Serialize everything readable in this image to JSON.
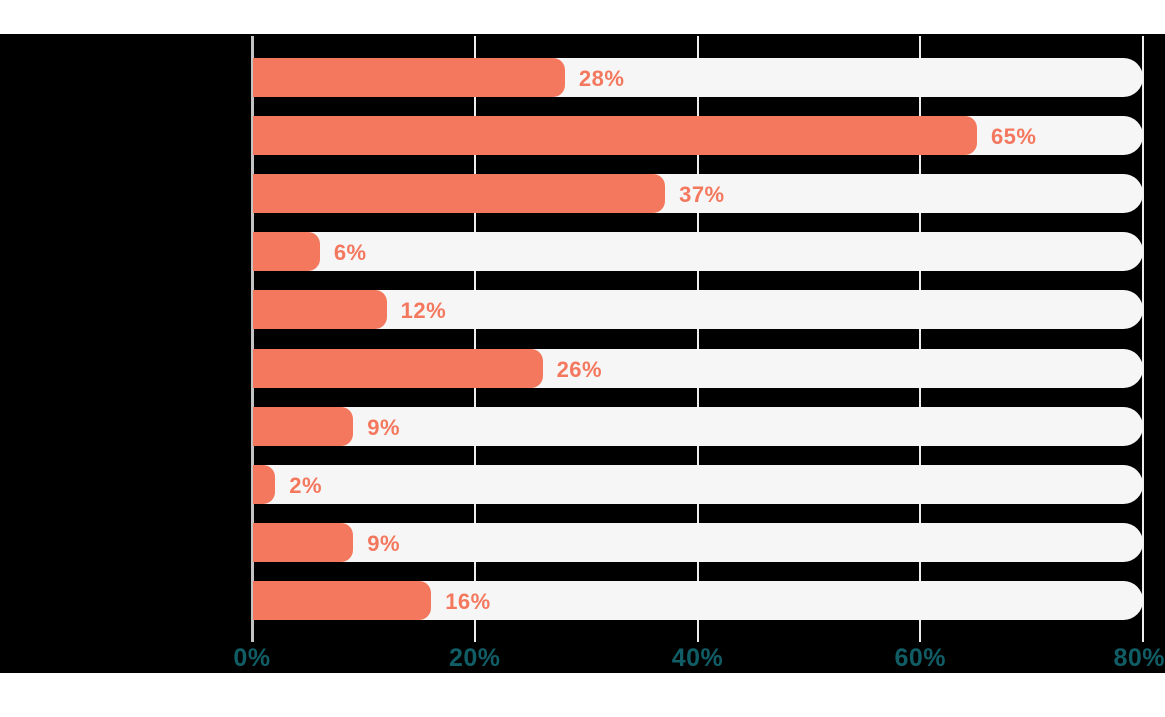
{
  "chart_data": {
    "type": "bar",
    "orientation": "horizontal",
    "title": "",
    "xlabel": "",
    "ylabel": "",
    "x_range_pct": [
      0,
      80
    ],
    "x_ticks": [
      {
        "value": 0,
        "label": "0%"
      },
      {
        "value": 20,
        "label": "20%"
      },
      {
        "value": 40,
        "label": "40%"
      },
      {
        "value": 60,
        "label": "60%"
      },
      {
        "value": 80,
        "label": "80%"
      }
    ],
    "bars": [
      {
        "value": 28,
        "label": "28%"
      },
      {
        "value": 65,
        "label": "65%"
      },
      {
        "value": 37,
        "label": "37%"
      },
      {
        "value": 6,
        "label": "6%"
      },
      {
        "value": 12,
        "label": "12%"
      },
      {
        "value": 26,
        "label": "26%"
      },
      {
        "value": 9,
        "label": "9%"
      },
      {
        "value": 2,
        "label": "2%"
      },
      {
        "value": 9,
        "label": "9%"
      },
      {
        "value": 16,
        "label": "16%"
      }
    ],
    "category_labels_visible": false,
    "legend": false,
    "grid": true,
    "colors": {
      "bar": "#f4785e",
      "bar_value_text": "#f4785e",
      "track": "#f6f6f7",
      "axis_tick_text": "#105d66",
      "plot_band_background": "#000000",
      "gridline": "#ededed",
      "zero_axis_line": "#c3c3c3",
      "page_background": "#ffffff"
    }
  }
}
